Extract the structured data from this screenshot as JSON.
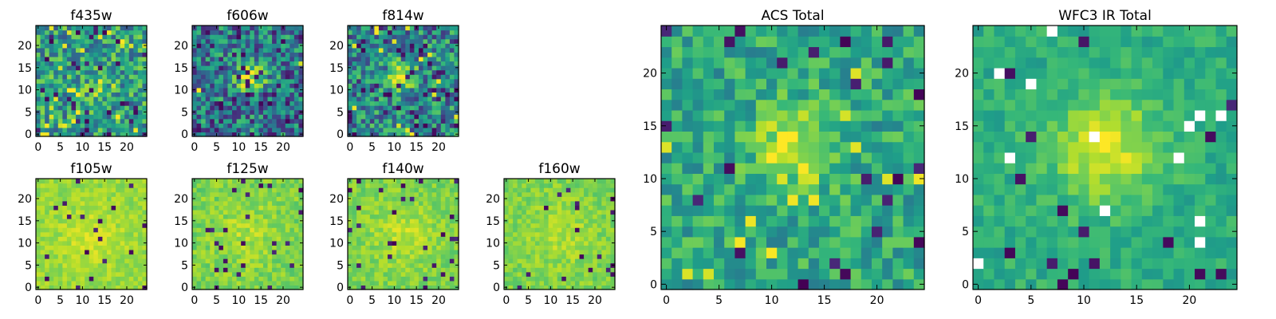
{
  "chart_data": [
    {
      "type": "heatmap",
      "title": "f435w",
      "xlim": [
        0,
        25
      ],
      "ylim": [
        0,
        25
      ],
      "xticks": [
        "0",
        "5",
        "10",
        "15",
        "20"
      ],
      "yticks": [
        "0",
        "5",
        "10",
        "15",
        "20"
      ],
      "grid_size": 25,
      "grid": false,
      "colormap": "viridis",
      "seed": 11,
      "base": 0.55,
      "noise": 0.28,
      "dark_frac": 0.06,
      "bright_frac": 0.06,
      "blob": {
        "x": 12,
        "y": 12,
        "sigma": 3.0,
        "amp": 0.05
      }
    },
    {
      "type": "heatmap",
      "title": "f606w",
      "xlim": [
        0,
        25
      ],
      "ylim": [
        0,
        25
      ],
      "xticks": [
        "0",
        "5",
        "10",
        "15",
        "20"
      ],
      "yticks": [
        "0",
        "5",
        "10",
        "15",
        "20"
      ],
      "grid_size": 25,
      "grid": false,
      "colormap": "viridis",
      "seed": 23,
      "base": 0.42,
      "noise": 0.3,
      "dark_frac": 0.09,
      "bright_frac": 0.01,
      "blob": {
        "x": 13,
        "y": 13,
        "sigma": 2.2,
        "amp": 0.6
      }
    },
    {
      "type": "heatmap",
      "title": "f814w",
      "xlim": [
        0,
        25
      ],
      "ylim": [
        0,
        25
      ],
      "xticks": [
        "0",
        "5",
        "10",
        "15",
        "20"
      ],
      "yticks": [
        "0",
        "5",
        "10",
        "15",
        "20"
      ],
      "grid_size": 25,
      "grid": false,
      "colormap": "viridis",
      "seed": 37,
      "base": 0.46,
      "noise": 0.3,
      "dark_frac": 0.07,
      "bright_frac": 0.02,
      "blob": {
        "x": 12,
        "y": 13,
        "sigma": 2.0,
        "amp": 0.55
      }
    },
    {
      "type": "heatmap",
      "title": "f105w",
      "xlim": [
        0,
        25
      ],
      "ylim": [
        0,
        25
      ],
      "xticks": [
        "0",
        "5",
        "10",
        "15",
        "20"
      ],
      "yticks": [
        "0",
        "5",
        "10",
        "15",
        "20"
      ],
      "grid_size": 25,
      "grid": false,
      "colormap": "viridis",
      "seed": 41,
      "base": 0.84,
      "noise": 0.07,
      "dark_frac": 0.03,
      "bright_frac": 0.0,
      "blob": {
        "x": 12,
        "y": 11,
        "sigma": 5.0,
        "amp": 0.08
      }
    },
    {
      "type": "heatmap",
      "title": "f125w",
      "xlim": [
        0,
        25
      ],
      "ylim": [
        0,
        25
      ],
      "xticks": [
        "0",
        "5",
        "10",
        "15",
        "20"
      ],
      "yticks": [
        "0",
        "5",
        "10",
        "15",
        "20"
      ],
      "grid_size": 25,
      "grid": false,
      "colormap": "viridis",
      "seed": 53,
      "base": 0.8,
      "noise": 0.09,
      "dark_frac": 0.05,
      "bright_frac": 0.0,
      "blob": {
        "x": 12,
        "y": 12,
        "sigma": 5.0,
        "amp": 0.08
      }
    },
    {
      "type": "heatmap",
      "title": "f140w",
      "xlim": [
        0,
        25
      ],
      "ylim": [
        0,
        25
      ],
      "xticks": [
        "0",
        "5",
        "10",
        "15",
        "20"
      ],
      "yticks": [
        "0",
        "5",
        "10",
        "15",
        "20"
      ],
      "grid_size": 25,
      "grid": false,
      "colormap": "viridis",
      "seed": 67,
      "base": 0.8,
      "noise": 0.08,
      "dark_frac": 0.04,
      "bright_frac": 0.0,
      "blob": {
        "x": 12,
        "y": 12,
        "sigma": 5.0,
        "amp": 0.1
      }
    },
    {
      "type": "heatmap",
      "title": "f160w",
      "xlim": [
        0,
        25
      ],
      "ylim": [
        0,
        25
      ],
      "xticks": [
        "0",
        "5",
        "10",
        "15",
        "20"
      ],
      "yticks": [
        "0",
        "5",
        "10",
        "15",
        "20"
      ],
      "grid_size": 25,
      "grid": false,
      "colormap": "viridis",
      "seed": 79,
      "base": 0.8,
      "noise": 0.08,
      "dark_frac": 0.035,
      "bright_frac": 0.0,
      "blob": {
        "x": 12,
        "y": 12,
        "sigma": 5.0,
        "amp": 0.08
      }
    },
    {
      "type": "heatmap",
      "title": "ACS Total",
      "xlim": [
        0,
        25
      ],
      "ylim": [
        0,
        25
      ],
      "xticks": [
        "0",
        "5",
        "10",
        "15",
        "20"
      ],
      "yticks": [
        "0",
        "5",
        "10",
        "15",
        "20"
      ],
      "grid_size": 25,
      "grid": false,
      "colormap": "viridis",
      "seed": 97,
      "base": 0.6,
      "noise": 0.18,
      "dark_frac": 0.035,
      "bright_frac": 0.02,
      "blob": {
        "x": 12,
        "y": 13,
        "sigma": 2.6,
        "amp": 0.38
      }
    },
    {
      "type": "heatmap",
      "title": "WFC3 IR Total",
      "xlim": [
        0,
        25
      ],
      "ylim": [
        0,
        25
      ],
      "xticks": [
        "0",
        "5",
        "10",
        "15",
        "20"
      ],
      "yticks": [
        "0",
        "5",
        "10",
        "15",
        "20"
      ],
      "grid_size": 25,
      "grid": false,
      "colormap": "viridis",
      "seed": 113,
      "base": 0.62,
      "noise": 0.1,
      "dark_frac": 0.025,
      "bright_frac": 0.0,
      "white_frac": 0.02,
      "blob": {
        "x": 12,
        "y": 13,
        "sigma": 3.6,
        "amp": 0.33
      }
    }
  ]
}
